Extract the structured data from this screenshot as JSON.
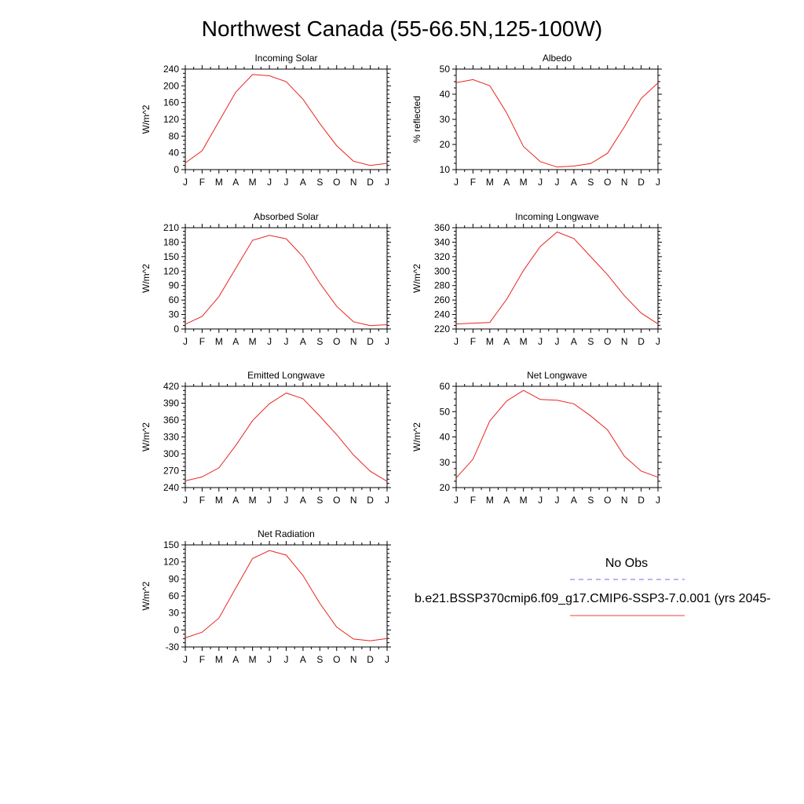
{
  "page": {
    "title": "Northwest Canada (55-66.5N,125-100W)"
  },
  "legend": {
    "obs_label": "No Obs",
    "model_label": "b.e21.BSSP370cmip6.f09_g17.CMIP6-SSP3-7.0.001 (yrs 2045-",
    "obs_color": "#6b6bf0",
    "model_color": "#e8433a"
  },
  "line_color": "#e8251f",
  "chart_data": [
    {
      "type": "line",
      "title": "Incoming Solar",
      "ylabel": "W/m^2",
      "x": [
        "J",
        "F",
        "M",
        "A",
        "M",
        "J",
        "J",
        "A",
        "S",
        "O",
        "N",
        "D",
        "J"
      ],
      "ylim": [
        0,
        240
      ],
      "yticks": [
        0,
        40,
        80,
        120,
        160,
        200,
        240
      ],
      "series": [
        {
          "values": [
            16,
            45,
            115,
            185,
            227,
            224,
            210,
            168,
            110,
            57,
            20,
            10,
            15
          ]
        }
      ]
    },
    {
      "type": "line",
      "title": "Albedo",
      "ylabel": "% reflected",
      "x": [
        "J",
        "F",
        "M",
        "A",
        "M",
        "J",
        "J",
        "A",
        "S",
        "O",
        "N",
        "D",
        "J"
      ],
      "ylim": [
        10,
        50
      ],
      "yticks": [
        10,
        20,
        30,
        40,
        50
      ],
      "series": [
        {
          "values": [
            44.6,
            45.8,
            43.4,
            32.6,
            19.2,
            13.2,
            11.0,
            11.4,
            12.4,
            16.5,
            27.0,
            38.3,
            44.5
          ]
        }
      ]
    },
    {
      "type": "line",
      "title": "Absorbed Solar",
      "ylabel": "W/m^2",
      "x": [
        "J",
        "F",
        "M",
        "A",
        "M",
        "J",
        "J",
        "A",
        "S",
        "O",
        "N",
        "D",
        "J"
      ],
      "ylim": [
        0,
        210
      ],
      "yticks": [
        0,
        30,
        60,
        90,
        120,
        150,
        180,
        210
      ],
      "series": [
        {
          "values": [
            10,
            26,
            67,
            126,
            184,
            194,
            187,
            150,
            95,
            47,
            15,
            7,
            9
          ]
        }
      ]
    },
    {
      "type": "line",
      "title": "Incoming Longwave",
      "ylabel": "W/m^2",
      "x": [
        "J",
        "F",
        "M",
        "A",
        "M",
        "J",
        "J",
        "A",
        "S",
        "O",
        "N",
        "D",
        "J"
      ],
      "ylim": [
        220,
        360
      ],
      "yticks": [
        220,
        240,
        260,
        280,
        300,
        320,
        340,
        360
      ],
      "series": [
        {
          "values": [
            227,
            228,
            229,
            261,
            301,
            334,
            354,
            345,
            320,
            295,
            266,
            242,
            227
          ]
        }
      ]
    },
    {
      "type": "line",
      "title": "Emitted Longwave",
      "ylabel": "W/m^2",
      "x": [
        "J",
        "F",
        "M",
        "A",
        "M",
        "J",
        "J",
        "A",
        "S",
        "O",
        "N",
        "D",
        "J"
      ],
      "ylim": [
        240,
        420
      ],
      "yticks": [
        240,
        270,
        300,
        330,
        360,
        390,
        420
      ],
      "series": [
        {
          "values": [
            252,
            259,
            275,
            315,
            359,
            389,
            408,
            398,
            367,
            334,
            298,
            269,
            251
          ]
        }
      ]
    },
    {
      "type": "line",
      "title": "Net Longwave",
      "ylabel": "W/m^2",
      "x": [
        "J",
        "F",
        "M",
        "A",
        "M",
        "J",
        "J",
        "A",
        "S",
        "O",
        "N",
        "D",
        "J"
      ],
      "ylim": [
        20,
        60
      ],
      "yticks": [
        20,
        30,
        40,
        50,
        60
      ],
      "series": [
        {
          "values": [
            23.8,
            31.2,
            46.3,
            54.2,
            58.4,
            54.8,
            54.5,
            53.1,
            48.3,
            42.8,
            32.4,
            26.5,
            24.1
          ]
        }
      ]
    },
    {
      "type": "line",
      "title": "Net Radiation",
      "ylabel": "W/m^2",
      "x": [
        "J",
        "F",
        "M",
        "A",
        "M",
        "J",
        "J",
        "A",
        "S",
        "O",
        "N",
        "D",
        "J"
      ],
      "ylim": [
        -30,
        150
      ],
      "yticks": [
        -30,
        0,
        30,
        60,
        90,
        120,
        150
      ],
      "series": [
        {
          "values": [
            -14,
            -4,
            21,
            74,
            126,
            140,
            132,
            96,
            47,
            5,
            -16,
            -19,
            -15
          ]
        }
      ]
    }
  ]
}
